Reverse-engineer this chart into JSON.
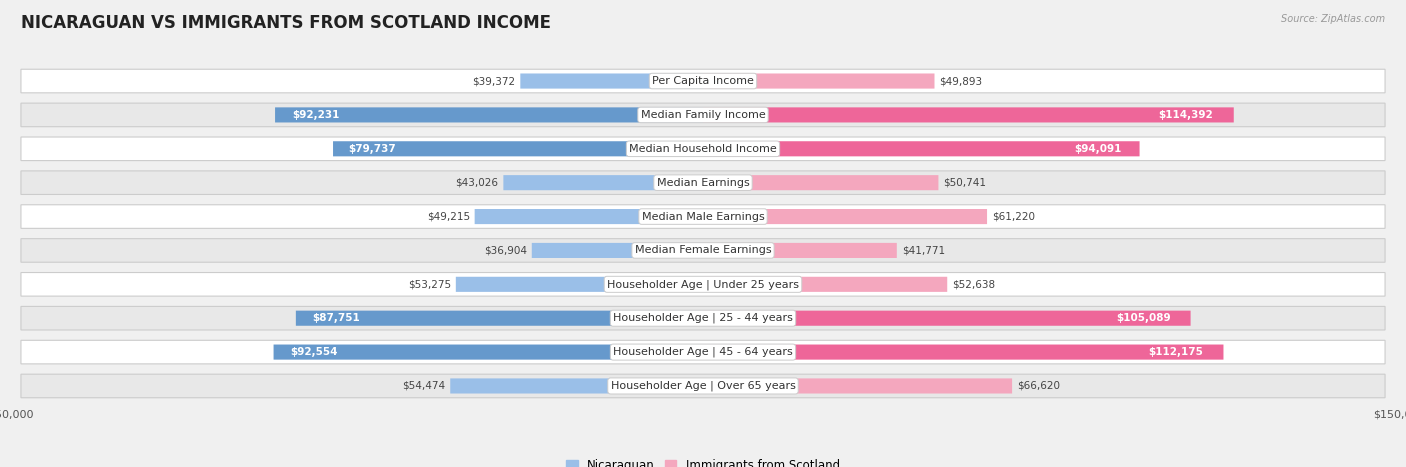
{
  "title": "NICARAGUAN VS IMMIGRANTS FROM SCOTLAND INCOME",
  "source": "Source: ZipAtlas.com",
  "categories": [
    "Per Capita Income",
    "Median Family Income",
    "Median Household Income",
    "Median Earnings",
    "Median Male Earnings",
    "Median Female Earnings",
    "Householder Age | Under 25 years",
    "Householder Age | 25 - 44 years",
    "Householder Age | 45 - 64 years",
    "Householder Age | Over 65 years"
  ],
  "nicaraguan_values": [
    39372,
    92231,
    79737,
    43026,
    49215,
    36904,
    53275,
    87751,
    92554,
    54474
  ],
  "scotland_values": [
    49893,
    114392,
    94091,
    50741,
    61220,
    41771,
    52638,
    105089,
    112175,
    66620
  ],
  "nicaraguan_labels": [
    "$39,372",
    "$92,231",
    "$79,737",
    "$43,026",
    "$49,215",
    "$36,904",
    "$53,275",
    "$87,751",
    "$92,554",
    "$54,474"
  ],
  "scotland_labels": [
    "$49,893",
    "$114,392",
    "$94,091",
    "$50,741",
    "$61,220",
    "$41,771",
    "$52,638",
    "$105,089",
    "$112,175",
    "$66,620"
  ],
  "nicaraguan_inside": [
    false,
    true,
    true,
    false,
    false,
    false,
    false,
    true,
    true,
    false
  ],
  "scotland_inside": [
    false,
    true,
    true,
    false,
    false,
    false,
    false,
    true,
    true,
    false
  ],
  "max_value": 150000,
  "nicaraguan_bar_color": "#9abfe8",
  "scotland_bar_color": "#f4a7be",
  "nicaraguan_bar_dark": "#6699cc",
  "scotland_bar_dark": "#ee6699",
  "background_color": "#f0f0f0",
  "row_colors": [
    "#ffffff",
    "#e8e8e8",
    "#ffffff",
    "#e8e8e8",
    "#ffffff",
    "#e8e8e8",
    "#ffffff",
    "#e8e8e8",
    "#ffffff",
    "#e8e8e8"
  ],
  "title_fontsize": 12,
  "label_fontsize": 8,
  "value_fontsize": 7.5,
  "legend_fontsize": 8.5,
  "axis_label_fontsize": 8
}
